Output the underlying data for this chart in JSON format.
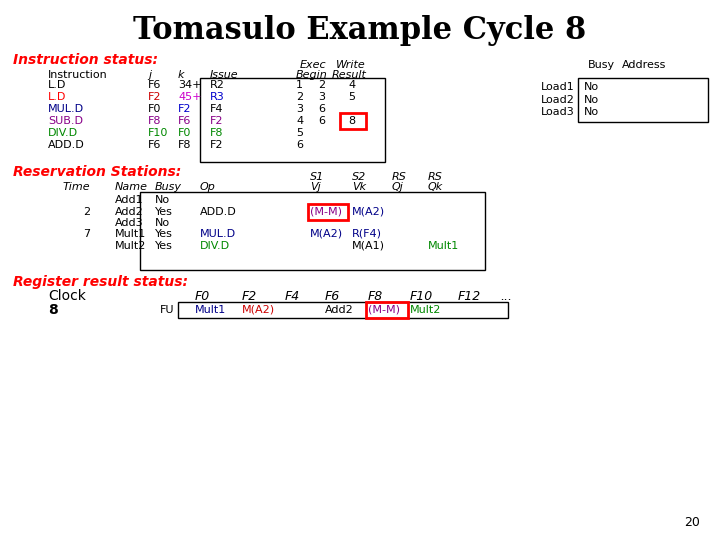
{
  "title": "Tomasulo Example Cycle 8",
  "slide_number": "20",
  "bg": "#ffffff",
  "instructions": [
    {
      "text": "L.D",
      "j": "F6",
      "k": "34+",
      "reg": "R2",
      "issue": "1",
      "exec": "2",
      "write": "4",
      "tc": "black",
      "jc": "black",
      "kc": "black",
      "rc": "black",
      "write_boxed": false
    },
    {
      "text": "L.D",
      "j": "F2",
      "k": "45+",
      "reg": "R3",
      "issue": "2",
      "exec": "3",
      "write": "5",
      "tc": "red",
      "jc": "#cc0000",
      "kc": "#cc00cc",
      "rc": "#0000cc",
      "write_boxed": false
    },
    {
      "text": "MUL.D",
      "j": "F0",
      "k": "F2",
      "reg": "F4",
      "issue": "3",
      "exec": "6",
      "write": "",
      "tc": "#000088",
      "jc": "black",
      "kc": "#0000cc",
      "rc": "black",
      "write_boxed": false
    },
    {
      "text": "SUB.D",
      "j": "F8",
      "k": "F6",
      "reg": "F2",
      "issue": "4",
      "exec": "6",
      "write": "8",
      "tc": "#880088",
      "jc": "#880088",
      "kc": "#880088",
      "rc": "#880088",
      "write_boxed": true
    },
    {
      "text": "DIV.D",
      "j": "F10",
      "k": "F0",
      "reg": "F8",
      "issue": "5",
      "exec": "",
      "write": "",
      "tc": "#008800",
      "jc": "#008800",
      "kc": "#008800",
      "rc": "#008800",
      "write_boxed": false
    },
    {
      "text": "ADD.D",
      "j": "F6",
      "k": "F8",
      "reg": "F2",
      "issue": "6",
      "exec": "",
      "write": "",
      "tc": "black",
      "jc": "black",
      "kc": "black",
      "rc": "black",
      "write_boxed": false
    }
  ],
  "load_rows": [
    {
      "name": "Load1",
      "busy": "No"
    },
    {
      "name": "Load2",
      "busy": "No"
    },
    {
      "name": "Load3",
      "busy": "No"
    }
  ],
  "rs_rows": [
    {
      "time": "",
      "name": "Add1",
      "busy": "No",
      "op": "",
      "oc": "black",
      "vj": "",
      "vjc": "black",
      "vj_boxed": false,
      "vk": "",
      "vkc": "black",
      "qj": "",
      "qjc": "black",
      "qk": "",
      "qkc": "black"
    },
    {
      "time": "2",
      "name": "Add2",
      "busy": "Yes",
      "op": "ADD.D",
      "oc": "black",
      "vj": "(M-M)",
      "vjc": "#880088",
      "vj_boxed": true,
      "vk": "M(A2)",
      "vkc": "#000088",
      "qj": "",
      "qjc": "black",
      "qk": "",
      "qkc": "black"
    },
    {
      "time": "",
      "name": "Add3",
      "busy": "No",
      "op": "",
      "oc": "black",
      "vj": "",
      "vjc": "black",
      "vj_boxed": false,
      "vk": "",
      "vkc": "black",
      "qj": "",
      "qjc": "black",
      "qk": "",
      "qkc": "black"
    },
    {
      "time": "7",
      "name": "Mult1",
      "busy": "Yes",
      "op": "MUL.D",
      "oc": "#000088",
      "vj": "M(A2)",
      "vjc": "#000088",
      "vj_boxed": false,
      "vk": "R(F4)",
      "vkc": "#000088",
      "qj": "",
      "qjc": "black",
      "qk": "",
      "qkc": "black"
    },
    {
      "time": "",
      "name": "Mult2",
      "busy": "Yes",
      "op": "DIV.D",
      "oc": "#008800",
      "vj": "",
      "vjc": "black",
      "vj_boxed": false,
      "vk": "M(A1)",
      "vkc": "black",
      "qj": "",
      "qjc": "black",
      "qk": "Mult1",
      "qkc": "#008800"
    }
  ],
  "reg_f0": {
    "val": "Mult1",
    "color": "#000088"
  },
  "reg_f2": {
    "val": "M(A2)",
    "color": "#cc0000"
  },
  "reg_f4": {
    "val": "",
    "color": "black"
  },
  "reg_f6": {
    "val": "Add2",
    "color": "black"
  },
  "reg_f8": {
    "val": "(M-M)",
    "color": "#880088",
    "boxed": true
  },
  "reg_f10": {
    "val": "Mult2",
    "color": "#008800"
  },
  "reg_f12": {
    "val": "",
    "color": "black"
  }
}
